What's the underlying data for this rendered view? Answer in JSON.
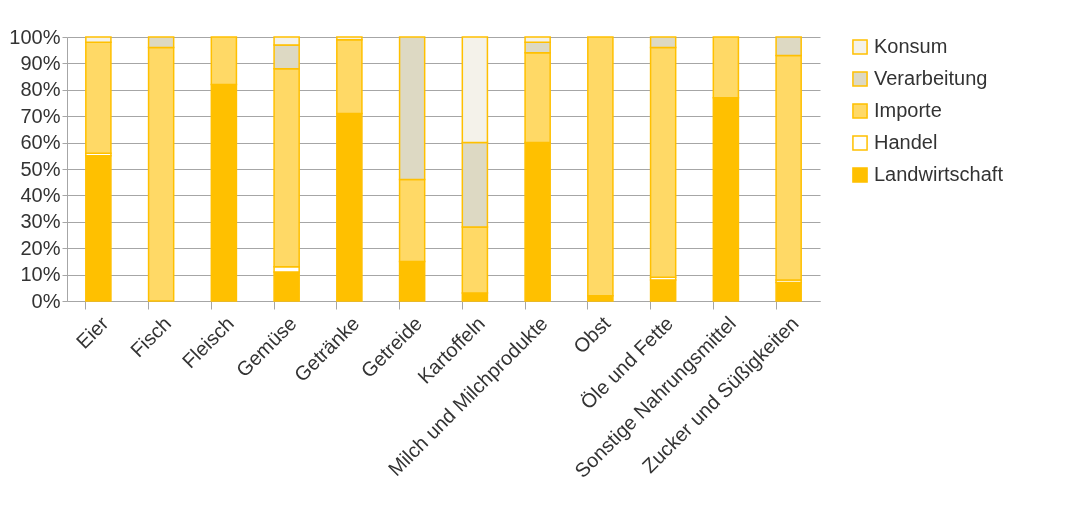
{
  "chart_data": {
    "type": "bar",
    "stacked": true,
    "categories": [
      "Eier",
      "Fisch",
      "Fleisch",
      "Gemüse",
      "Getränke",
      "Getreide",
      "Kartoffeln",
      "Milch und Milchprodukte",
      "Obst",
      "Öle und Fette",
      "Sonstige Nahrungsmittel",
      "Zucker und Süßigkeiten"
    ],
    "series": [
      {
        "name": "Landwirtschaft",
        "color": "#ffc000",
        "values": [
          55,
          0,
          82,
          11,
          71,
          15,
          3,
          60,
          2,
          8,
          77,
          7
        ]
      },
      {
        "name": "Handel",
        "color": "#ffffff",
        "values": [
          1,
          0,
          0,
          2,
          0,
          0,
          0,
          0,
          0,
          1,
          0,
          1
        ]
      },
      {
        "name": "Importe",
        "color": "#ffd966",
        "values": [
          42,
          96,
          18,
          75,
          28,
          31,
          25,
          34,
          98,
          87,
          23,
          85
        ]
      },
      {
        "name": "Verarbeitung",
        "color": "#ddd9c3",
        "values": [
          0,
          4,
          0,
          9,
          0,
          54,
          32,
          4,
          0,
          4,
          0,
          7
        ]
      },
      {
        "name": "Konsum",
        "color": "#f4f2ea",
        "values": [
          2,
          0,
          0,
          3,
          1,
          0,
          40,
          2,
          0,
          0,
          0,
          0
        ]
      }
    ],
    "ylim": [
      0,
      100
    ],
    "yticks": [
      {
        "value": 0,
        "label": "0%"
      },
      {
        "value": 10,
        "label": "10%"
      },
      {
        "value": 20,
        "label": "20%"
      },
      {
        "value": 30,
        "label": "30%"
      },
      {
        "value": 40,
        "label": "40%"
      },
      {
        "value": 50,
        "label": "50%"
      },
      {
        "value": 60,
        "label": "60%"
      },
      {
        "value": 70,
        "label": "70%"
      },
      {
        "value": 80,
        "label": "80%"
      },
      {
        "value": 90,
        "label": "90%"
      },
      {
        "value": 100,
        "label": "100%"
      }
    ],
    "grid": "y",
    "legend": "right"
  }
}
